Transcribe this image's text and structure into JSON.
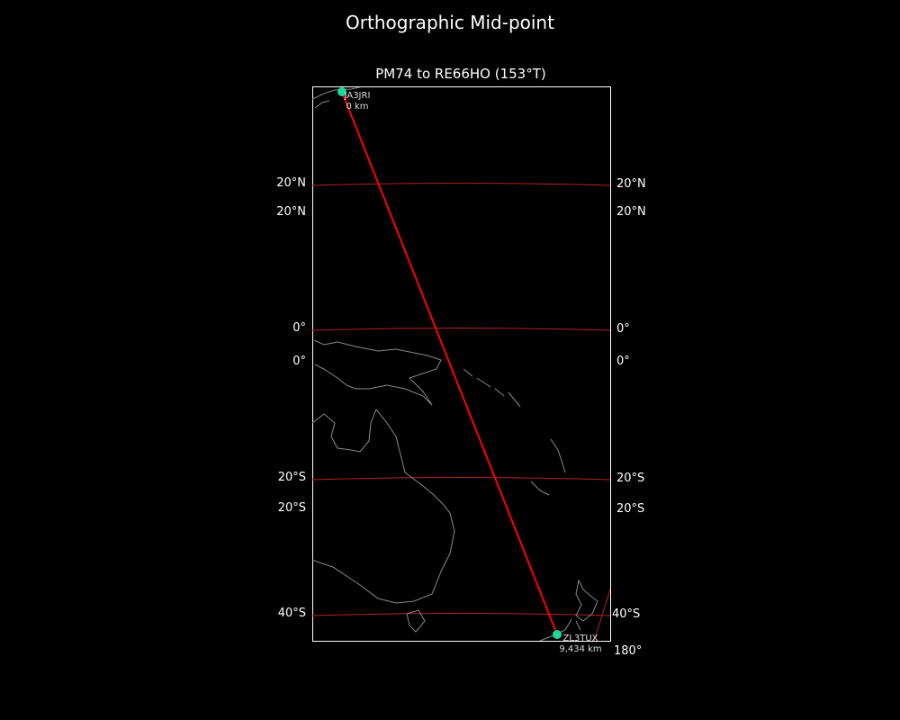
{
  "figure": {
    "title": "Orthographic Mid-point",
    "subtitle": "PM74 to RE66HO (153°T)"
  },
  "map": {
    "projection": "orthographic",
    "background_color": "#000000",
    "coastline_color": "#888888",
    "graticule_color": "#b22222",
    "path_color": "#ff0000",
    "station_color": "#1fd8a0",
    "lat_labels_left": [
      "20°N",
      "20°N",
      "0°",
      "0°",
      "20°S",
      "20°S",
      "40°S"
    ],
    "lat_labels_right": [
      "20°N",
      "20°N",
      "0°",
      "0°",
      "20°S",
      "20°S",
      "40°S"
    ],
    "lon_labels": [
      "180°"
    ],
    "stations": [
      {
        "call": "JA3JRI",
        "distance": "0 km"
      },
      {
        "call": "ZL3TUX",
        "distance": "9,434 km"
      }
    ]
  }
}
